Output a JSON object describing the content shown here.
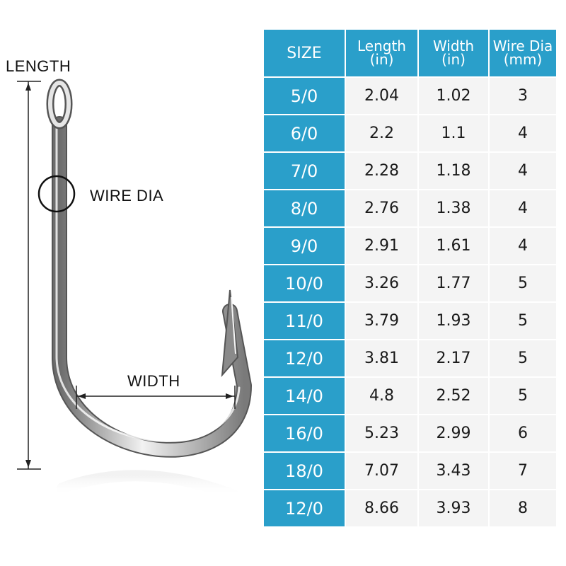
{
  "labels": {
    "length": "LENGTH",
    "wire_dia": "WIRE DIA",
    "width": "WIDTH"
  },
  "colors": {
    "header_bg": "#2a9fca",
    "cell_bg": "#f4f4f4",
    "text_dark": "#1a1a1a"
  },
  "table": {
    "headers": [
      {
        "line1": "SIZE",
        "line2": ""
      },
      {
        "line1": "Length",
        "line2": "(in)"
      },
      {
        "line1": "Width",
        "line2": "(in)"
      },
      {
        "line1": "Wire Dia",
        "line2": "(mm)"
      }
    ],
    "rows": [
      {
        "size": "5/0",
        "length": "2.04",
        "width": "1.02",
        "wire_dia": "3"
      },
      {
        "size": "6/0",
        "length": "2.2",
        "width": "1.1",
        "wire_dia": "4"
      },
      {
        "size": "7/0",
        "length": "2.28",
        "width": "1.18",
        "wire_dia": "4"
      },
      {
        "size": "8/0",
        "length": "2.76",
        "width": "1.38",
        "wire_dia": "4"
      },
      {
        "size": "9/0",
        "length": "2.91",
        "width": "1.61",
        "wire_dia": "4"
      },
      {
        "size": "10/0",
        "length": "3.26",
        "width": "1.77",
        "wire_dia": "5"
      },
      {
        "size": "11/0",
        "length": "3.79",
        "width": "1.93",
        "wire_dia": "5"
      },
      {
        "size": "12/0",
        "length": "3.81",
        "width": "2.17",
        "wire_dia": "5"
      },
      {
        "size": "14/0",
        "length": "4.8",
        "width": "2.52",
        "wire_dia": "5"
      },
      {
        "size": "16/0",
        "length": "5.23",
        "width": "2.99",
        "wire_dia": "6"
      },
      {
        "size": "18/0",
        "length": "7.07",
        "width": "3.43",
        "wire_dia": "7"
      },
      {
        "size": "12/0",
        "length": "8.66",
        "width": "3.93",
        "wire_dia": "8"
      }
    ]
  }
}
